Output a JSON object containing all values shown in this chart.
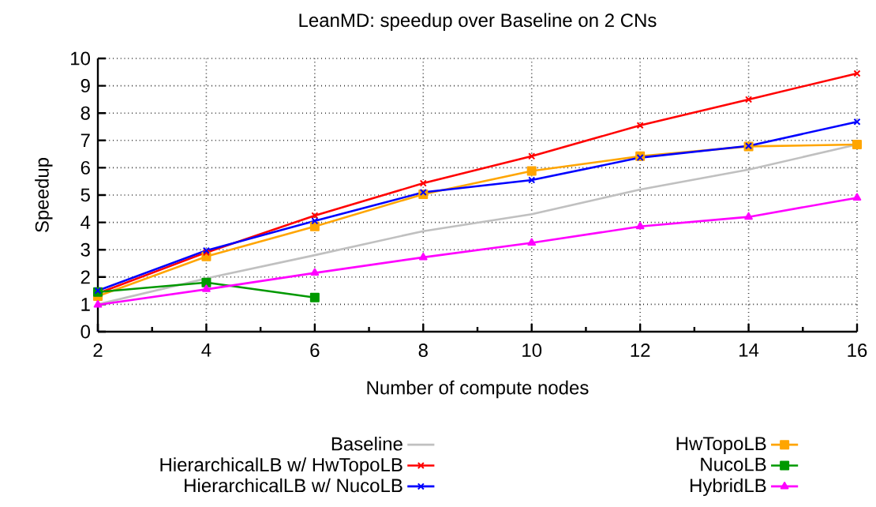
{
  "chart_data": {
    "type": "line",
    "title": "LeanMD: speedup over Baseline on 2 CNs",
    "xlabel": "Number of compute nodes",
    "ylabel": "Speedup",
    "x": [
      2,
      4,
      6,
      8,
      10,
      12,
      14,
      16
    ],
    "xlim": [
      2,
      16
    ],
    "xticks": [
      2,
      4,
      6,
      8,
      10,
      12,
      14,
      16
    ],
    "ylim": [
      0,
      10
    ],
    "yticks": [
      0,
      1,
      2,
      3,
      4,
      5,
      6,
      7,
      8,
      9,
      10
    ],
    "grid": true,
    "legend": "bottom",
    "line_style": "solid",
    "series": [
      {
        "name": "Baseline",
        "color": "#c0c0c0",
        "marker": "none",
        "values": [
          1.0,
          1.95,
          2.8,
          3.68,
          4.3,
          5.2,
          5.93,
          6.85
        ]
      },
      {
        "name": "HwTopoLB",
        "color": "#ffa500",
        "marker": "square",
        "values": [
          1.3,
          2.75,
          3.85,
          5.03,
          5.88,
          6.42,
          6.78,
          6.85
        ]
      },
      {
        "name": "HierarchicalLB w/ HwTopoLB",
        "color": "#ff0000",
        "marker": "cross",
        "values": [
          1.4,
          2.9,
          4.25,
          5.43,
          6.42,
          7.55,
          8.5,
          9.45
        ]
      },
      {
        "name": "NucoLB",
        "color": "#009900",
        "marker": "square",
        "values": [
          1.45,
          1.8,
          1.25,
          null,
          null,
          null,
          null,
          null
        ]
      },
      {
        "name": "HierarchicalLB w/ NucoLB",
        "color": "#0000ff",
        "marker": "cross",
        "values": [
          1.5,
          2.97,
          4.05,
          5.1,
          5.55,
          6.37,
          6.8,
          7.68
        ]
      },
      {
        "name": "HybridLB",
        "color": "#ff00ff",
        "marker": "triangle",
        "values": [
          0.98,
          1.55,
          2.15,
          2.72,
          3.25,
          3.85,
          4.2,
          4.9
        ]
      }
    ]
  }
}
